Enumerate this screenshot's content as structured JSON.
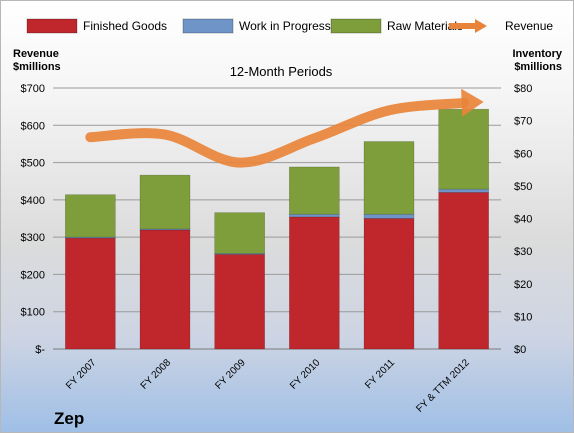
{
  "chart_data": {
    "type": "bar",
    "title": "12-Month Periods",
    "company": "Zep",
    "categories": [
      "FY 2007",
      "FY 2008",
      "FY 2009",
      "FY 2010",
      "FY 2011",
      "FY & TTM 2012"
    ],
    "left_axis_label": [
      "Revenue",
      "$millions"
    ],
    "right_axis_label": [
      "Inventory",
      "$millions"
    ],
    "left_ylim": [
      0,
      700
    ],
    "right_ylim": [
      0,
      80
    ],
    "left_ticks": [
      "$-",
      "$100",
      "$200",
      "$300",
      "$400",
      "$500",
      "$600",
      "$700"
    ],
    "right_ticks": [
      "$0",
      "$10",
      "$20",
      "$30",
      "$40",
      "$50",
      "$60",
      "$70",
      "$80"
    ],
    "grid": true,
    "legend_position": "top",
    "stacked": true,
    "series": [
      {
        "name": "Finished Goods",
        "axis": "right",
        "color": "#c0272d",
        "values": [
          34,
          36.5,
          29,
          40.5,
          40,
          48
        ]
      },
      {
        "name": "Work in Progress",
        "axis": "right",
        "color": "#6f94c7",
        "values": [
          0.3,
          0.3,
          0.3,
          0.8,
          1.3,
          1
        ]
      },
      {
        "name": "Raw Materials",
        "axis": "right",
        "color": "#7d9e3a",
        "values": [
          13,
          16.5,
          12.5,
          14.5,
          22.3,
          24.5
        ]
      },
      {
        "name": "Revenue",
        "axis": "left",
        "type": "line",
        "color": "#e8843a",
        "values": [
          568,
          575,
          500,
          565,
          640,
          660
        ]
      }
    ]
  }
}
